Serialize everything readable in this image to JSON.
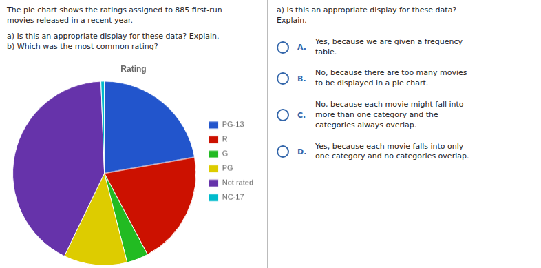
{
  "chart_data": {
    "type": "pie",
    "title": "Rating",
    "categories": [
      "PG-13",
      "R",
      "G",
      "PG",
      "Not rated",
      "NC-17"
    ],
    "values": [
      0.222,
      0.2,
      0.038,
      0.112,
      0.422,
      0.006
    ],
    "colors": [
      "#2255cc",
      "#cc1100",
      "#22bb22",
      "#ddcc00",
      "#6633aa",
      "#00bbcc"
    ],
    "legend": "right",
    "annotations": [
      "The pie chart shows the ratings assigned to 885 first-run\nmovies released in a recent year.",
      "a) Is this an appropriate display for these data? Explain.\nb) Which was the most common rating?",
      "a) Is this an appropriate display for these data?\nExplain.",
      "A.",
      "Yes, because we are given a frequency\ntable.",
      "B.",
      "No, because there are too many movies\nto be displayed in a pie chart.",
      "C.",
      "No, because each movie might fall into\nmore than one category and the\ncategories always overlap.",
      "D.",
      "Yes, because each movie falls into only\none category and no categories overlap."
    ]
  }
}
